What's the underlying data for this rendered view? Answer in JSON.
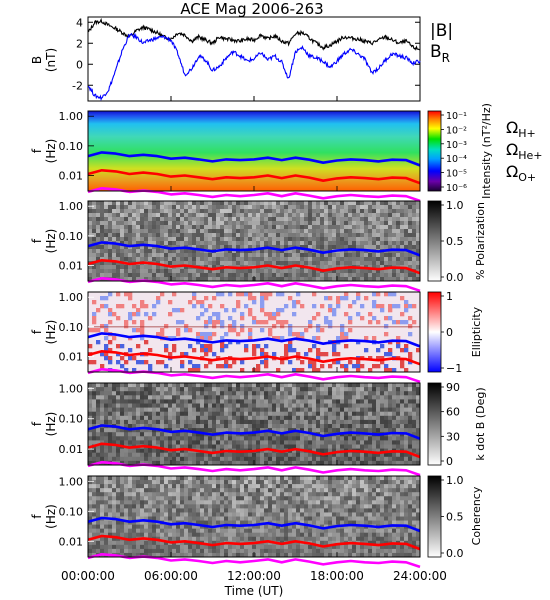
{
  "chart_data": {
    "title": "ACE Mag 2006-263",
    "x_axis": {
      "label": "Time (UT)",
      "range_hours": [
        0,
        24
      ],
      "tick_labels": [
        "00:00:00",
        "06:00:00",
        "12:00:00",
        "18:00:00",
        "24:00:00"
      ],
      "tick_hours": [
        0,
        6,
        12,
        18,
        24
      ]
    },
    "panels": [
      {
        "type": "line",
        "ylabel": "B (nT)",
        "yticks": [
          "4",
          "2",
          "0",
          "-2"
        ],
        "ylim": [
          -3.5,
          4.5
        ],
        "series": [
          {
            "name": "|B|",
            "color": "#000000",
            "x": [
              0,
              0.5,
              1,
              1.5,
              2,
              2.5,
              3,
              3.5,
              4,
              4.5,
              5,
              5.5,
              6,
              6.5,
              7,
              7.5,
              8,
              8.5,
              9,
              9.5,
              10,
              10.5,
              11,
              11.5,
              12,
              12.5,
              13,
              13.5,
              14,
              14.5,
              15,
              15.5,
              16,
              16.5,
              17,
              17.5,
              18,
              18.5,
              19,
              19.5,
              20,
              20.5,
              21,
              21.5,
              22,
              22.5,
              23,
              23.5,
              24
            ],
            "y": [
              3.0,
              4.0,
              4.1,
              3.7,
              3.4,
              3.0,
              2.6,
              3.2,
              3.5,
              3.3,
              3.0,
              2.6,
              2.4,
              3.0,
              2.8,
              2.2,
              2.6,
              2.3,
              2.0,
              2.6,
              2.4,
              2.3,
              2.2,
              2.4,
              2.3,
              2.8,
              2.4,
              2.7,
              2.2,
              2.0,
              2.9,
              3.0,
              2.5,
              2.0,
              1.6,
              1.8,
              2.2,
              2.6,
              2.5,
              2.4,
              2.2,
              2.0,
              2.3,
              2.6,
              2.3,
              2.0,
              2.2,
              1.6,
              1.4
            ]
          },
          {
            "name": "B_R",
            "color": "#0000ff",
            "x": [
              0,
              0.5,
              1,
              1.5,
              2,
              2.5,
              3,
              3.5,
              4,
              4.5,
              5,
              5.5,
              6,
              6.5,
              7,
              7.5,
              8,
              8.5,
              9,
              9.5,
              10,
              10.5,
              11,
              11.5,
              12,
              12.5,
              13,
              13.5,
              14,
              14.5,
              15,
              15.5,
              16,
              16.5,
              17,
              17.5,
              18,
              18.5,
              19,
              19.5,
              20,
              20.5,
              21,
              21.5,
              22,
              22.5,
              23,
              23.5,
              24
            ],
            "y": [
              -2.0,
              -3.0,
              -3.2,
              -2.4,
              -0.6,
              1.4,
              2.8,
              2.6,
              2.0,
              2.3,
              2.5,
              2.6,
              2.3,
              1.0,
              -1.0,
              -0.4,
              0.8,
              0.4,
              -0.6,
              -0.2,
              0.6,
              1.2,
              0.8,
              0.3,
              0.5,
              1.1,
              0.4,
              0.8,
              0.2,
              -1.4,
              1.2,
              1.6,
              0.8,
              0.6,
              0.3,
              -0.3,
              0.3,
              1.0,
              1.4,
              1.0,
              0.5,
              -0.8,
              -0.4,
              0.4,
              1.0,
              0.8,
              0.6,
              0.1,
              0.3
            ]
          }
        ]
      },
      {
        "type": "heatmap",
        "ylabel": "f (Hz)",
        "yticks": [
          "1.00",
          "0.10",
          "0.01"
        ],
        "colorbar": {
          "label": "Intensity (nT²/Hz)",
          "ticks": [
            "10⁻¹",
            "10⁻²",
            "10⁻³",
            "10⁻⁴",
            "10⁻⁵",
            "10⁻⁶"
          ],
          "colormap": "rainbow"
        }
      },
      {
        "type": "heatmap",
        "ylabel": "f (Hz)",
        "yticks": [
          "1.00",
          "0.10",
          "0.01"
        ],
        "colorbar": {
          "label": "% Polarization",
          "ticks": [
            "1.0",
            "0.5",
            "0.0"
          ],
          "colormap": "gray"
        }
      },
      {
        "type": "heatmap",
        "ylabel": "f (Hz)",
        "yticks": [
          "1.00",
          "0.10",
          "0.01"
        ],
        "colorbar": {
          "label": "Ellipticity",
          "ticks": [
            "1",
            "0",
            "−1"
          ],
          "colormap": "blue-white-red"
        }
      },
      {
        "type": "heatmap",
        "ylabel": "f (Hz)",
        "yticks": [
          "1.00",
          "0.10",
          "0.01"
        ],
        "colorbar": {
          "label": "k dot B (Deg)",
          "ticks": [
            "90",
            "60",
            "30",
            "0"
          ],
          "colormap": "gray"
        }
      },
      {
        "type": "heatmap",
        "ylabel": "f (Hz)",
        "yticks": [
          "1.00",
          "0.10",
          "0.01"
        ],
        "colorbar": {
          "label": "Coherency",
          "ticks": [
            "1.0",
            "0.5",
            "0.0"
          ],
          "colormap": "gray"
        }
      }
    ],
    "overlay_lines": [
      {
        "name": "Ω_H+",
        "color": "#0000ff",
        "x": [
          0,
          1,
          2,
          3,
          4,
          5,
          6,
          7,
          8,
          9,
          10,
          11,
          12,
          13,
          14,
          15,
          16,
          17,
          18,
          19,
          20,
          21,
          22,
          23,
          24
        ],
        "f_hz": [
          0.045,
          0.06,
          0.055,
          0.045,
          0.05,
          0.045,
          0.037,
          0.04,
          0.035,
          0.03,
          0.035,
          0.033,
          0.035,
          0.04,
          0.033,
          0.04,
          0.034,
          0.027,
          0.032,
          0.035,
          0.033,
          0.03,
          0.034,
          0.033,
          0.022
        ]
      },
      {
        "name": "Ω_He+",
        "color": "#ff0000",
        "x": [
          0,
          1,
          2,
          3,
          4,
          5,
          6,
          7,
          8,
          9,
          10,
          11,
          12,
          13,
          14,
          15,
          16,
          17,
          18,
          19,
          20,
          21,
          22,
          23,
          24
        ],
        "f_hz": [
          0.0112,
          0.015,
          0.0137,
          0.0112,
          0.0125,
          0.0112,
          0.0092,
          0.01,
          0.0087,
          0.0075,
          0.0087,
          0.0082,
          0.0087,
          0.01,
          0.0082,
          0.01,
          0.0085,
          0.0067,
          0.008,
          0.0087,
          0.0082,
          0.0075,
          0.0085,
          0.0082,
          0.0055
        ]
      },
      {
        "name": "Ω_O+",
        "color": "#ff00ff",
        "x": [
          0,
          1,
          2,
          3,
          4,
          5,
          6,
          7,
          8,
          9,
          10,
          11,
          12,
          13,
          14,
          15,
          16,
          17,
          18,
          19,
          20,
          21,
          22,
          23,
          24
        ],
        "f_hz": [
          0.0028,
          0.0037,
          0.0034,
          0.0028,
          0.0031,
          0.0028,
          0.0023,
          0.0025,
          0.0022,
          0.0019,
          0.0022,
          0.002,
          0.0022,
          0.0025,
          0.002,
          0.0025,
          0.0021,
          0.0017,
          0.002,
          0.0022,
          0.002,
          0.0019,
          0.0021,
          0.002,
          0.0014
        ]
      }
    ],
    "frequency_range_hz": [
      0.003,
      1.5
    ],
    "legend": [
      {
        "base": "Ω",
        "sub": "H+",
        "color": "#0000ff"
      },
      {
        "base": "Ω",
        "sub": "He+",
        "color": "#ff0000"
      },
      {
        "base": "Ω",
        "sub": "O+",
        "color": "#ff00ff"
      }
    ],
    "b_legend": [
      {
        "text": "|B|",
        "sub": "",
        "color": "#000000"
      },
      {
        "text": "B",
        "sub": "R",
        "color": "#0000ff"
      }
    ]
  }
}
